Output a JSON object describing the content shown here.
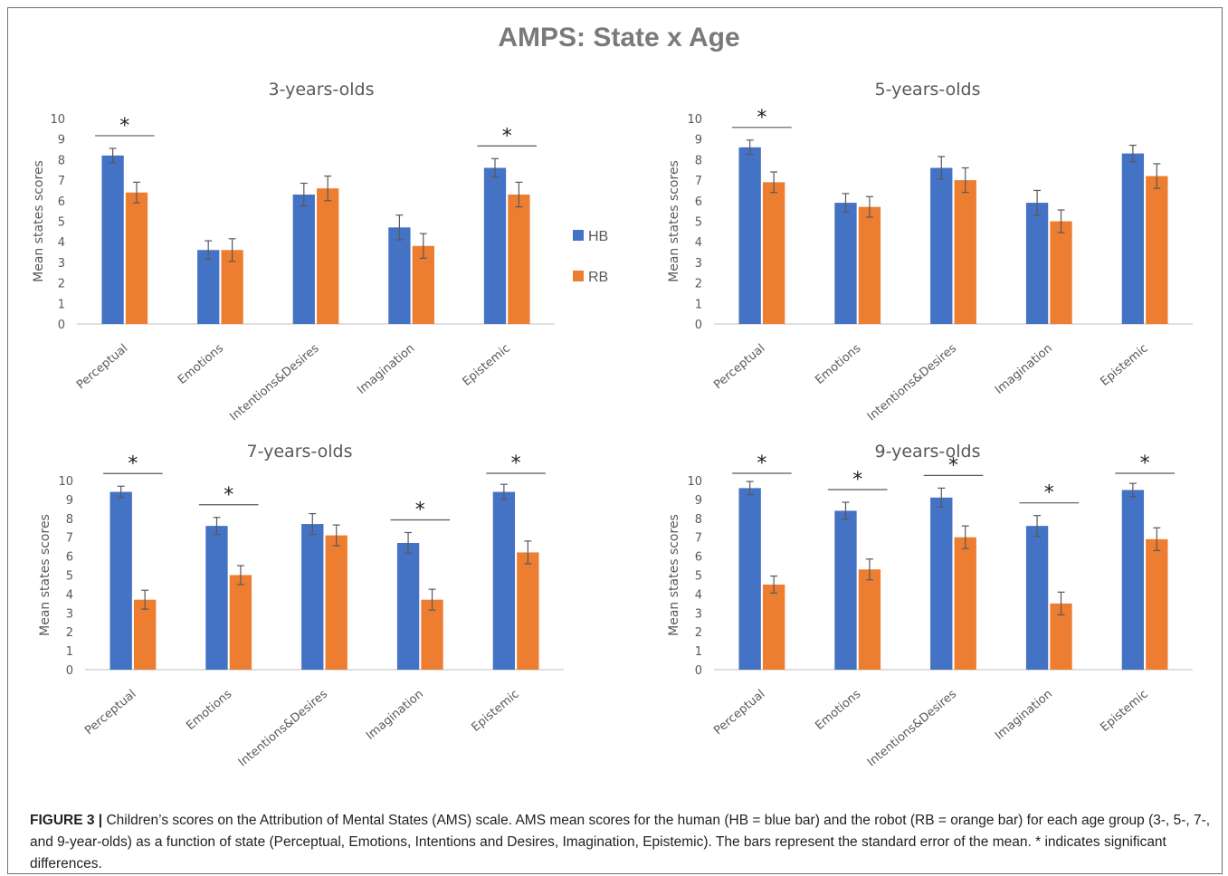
{
  "figure": {
    "title": "AMPS: State x Age",
    "legend": [
      {
        "label": "HB",
        "color": "#4472C4"
      },
      {
        "label": "RB",
        "color": "#ED7D31"
      }
    ],
    "caption_label": "FIGURE 3 |",
    "caption_text": "Children’s scores on the Attribution of Mental States (AMS) scale. AMS mean scores for the human (HB = blue bar) and the robot (RB = orange bar) for each age group (3-, 5-, 7-, and 9-year-olds) as a function of state (Perceptual, Emotions, Intentions and Desires, Imagination, Epistemic). The bars represent the standard error of the mean. * indicates significant differences."
  },
  "chart_data": [
    {
      "type": "bar",
      "title": "3-years-olds",
      "ylabel": "Mean states scores",
      "ylim": [
        0,
        10
      ],
      "yticks": [
        "0",
        "1",
        "2",
        "3",
        "4",
        "5",
        "6",
        "7",
        "8",
        "9",
        "10"
      ],
      "categories": [
        "Perceptual",
        "Emotions",
        "Intentions&Desires",
        "Imagination",
        "Epistemic"
      ],
      "series": [
        {
          "name": "HB",
          "color": "#4472C4",
          "values": [
            8.2,
            3.6,
            6.3,
            4.7,
            7.6
          ],
          "errors": [
            0.35,
            0.45,
            0.55,
            0.6,
            0.45
          ]
        },
        {
          "name": "RB",
          "color": "#ED7D31",
          "values": [
            6.4,
            3.6,
            6.6,
            3.8,
            6.3
          ],
          "errors": [
            0.5,
            0.55,
            0.6,
            0.6,
            0.6
          ]
        }
      ],
      "significance": [
        true,
        false,
        false,
        false,
        true
      ],
      "significance_label": "*"
    },
    {
      "type": "bar",
      "title": "5-years-olds",
      "ylabel": "Mean states scores",
      "ylim": [
        0,
        10
      ],
      "yticks": [
        "0",
        "1",
        "2",
        "3",
        "4",
        "5",
        "6",
        "7",
        "8",
        "9",
        "10"
      ],
      "categories": [
        "Perceptual",
        "Emotions",
        "Intentions&Desires",
        "Imagination",
        "Epistemic"
      ],
      "series": [
        {
          "name": "HB",
          "color": "#4472C4",
          "values": [
            8.6,
            5.9,
            7.6,
            5.9,
            8.3
          ],
          "errors": [
            0.35,
            0.45,
            0.55,
            0.6,
            0.4
          ]
        },
        {
          "name": "RB",
          "color": "#ED7D31",
          "values": [
            6.9,
            5.7,
            7.0,
            5.0,
            7.2
          ],
          "errors": [
            0.5,
            0.5,
            0.6,
            0.55,
            0.6
          ]
        }
      ],
      "significance": [
        true,
        false,
        false,
        false,
        false
      ],
      "significance_label": "*"
    },
    {
      "type": "bar",
      "title": "7-years-olds",
      "ylabel": "Mean states scores",
      "ylim": [
        0,
        10
      ],
      "yticks": [
        "0",
        "1",
        "2",
        "3",
        "4",
        "5",
        "6",
        "7",
        "8",
        "9",
        "10"
      ],
      "categories": [
        "Perceptual",
        "Emotions",
        "Intentions&Desires",
        "Imagination",
        "Epistemic"
      ],
      "series": [
        {
          "name": "HB",
          "color": "#4472C4",
          "values": [
            9.4,
            7.6,
            7.7,
            6.7,
            9.4
          ],
          "errors": [
            0.3,
            0.45,
            0.55,
            0.55,
            0.4
          ]
        },
        {
          "name": "RB",
          "color": "#ED7D31",
          "values": [
            3.7,
            5.0,
            7.1,
            3.7,
            6.2
          ],
          "errors": [
            0.5,
            0.5,
            0.55,
            0.55,
            0.6
          ]
        }
      ],
      "significance": [
        true,
        true,
        false,
        true,
        true
      ],
      "significance_label": "*"
    },
    {
      "type": "bar",
      "title": "9-years-olds",
      "ylabel": "Mean states scores",
      "ylim": [
        0,
        10
      ],
      "yticks": [
        "0",
        "1",
        "2",
        "3",
        "4",
        "5",
        "6",
        "7",
        "8",
        "9",
        "10"
      ],
      "categories": [
        "Perceptual",
        "Emotions",
        "Intentions&Desires",
        "Imagination",
        "Epistemic"
      ],
      "series": [
        {
          "name": "HB",
          "color": "#4472C4",
          "values": [
            9.6,
            8.4,
            9.1,
            7.6,
            9.5
          ],
          "errors": [
            0.35,
            0.45,
            0.5,
            0.55,
            0.35
          ]
        },
        {
          "name": "RB",
          "color": "#ED7D31",
          "values": [
            4.5,
            5.3,
            7.0,
            3.5,
            6.9
          ],
          "errors": [
            0.45,
            0.55,
            0.6,
            0.6,
            0.6
          ]
        }
      ],
      "significance": [
        true,
        true,
        true,
        true,
        true
      ],
      "significance_label": "*"
    }
  ]
}
